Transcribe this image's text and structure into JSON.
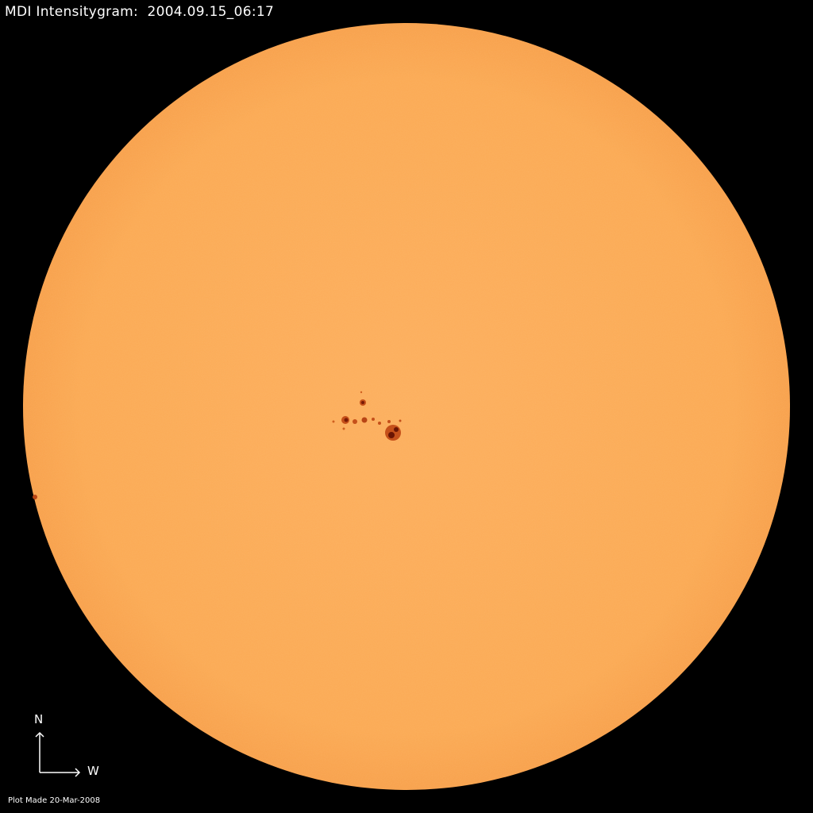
{
  "title": "MDI Intensitygram:  2004.09.15_06:17",
  "compass": {
    "north_label": "N",
    "west_label": "W"
  },
  "footer": "Plot Made 20-Mar-2008",
  "colors": {
    "background": "#000000",
    "disc": "#FBAA55",
    "limb": "#F59A3C",
    "sunspot_umbra": "#7A1A05",
    "sunspot_penumbra": "#C5501A"
  }
}
